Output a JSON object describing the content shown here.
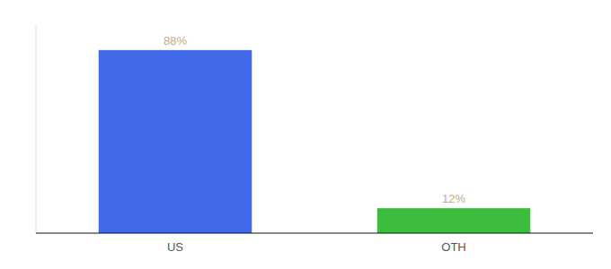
{
  "chart_data": {
    "type": "bar",
    "categories": [
      "US",
      "OTH"
    ],
    "values": [
      88,
      12
    ],
    "colors": [
      "#4169e8",
      "#3ebc3e"
    ],
    "data_labels": true,
    "value_labels": [
      "88%",
      "12%"
    ],
    "ylim": [
      0,
      100
    ],
    "tick_labels": "x"
  }
}
